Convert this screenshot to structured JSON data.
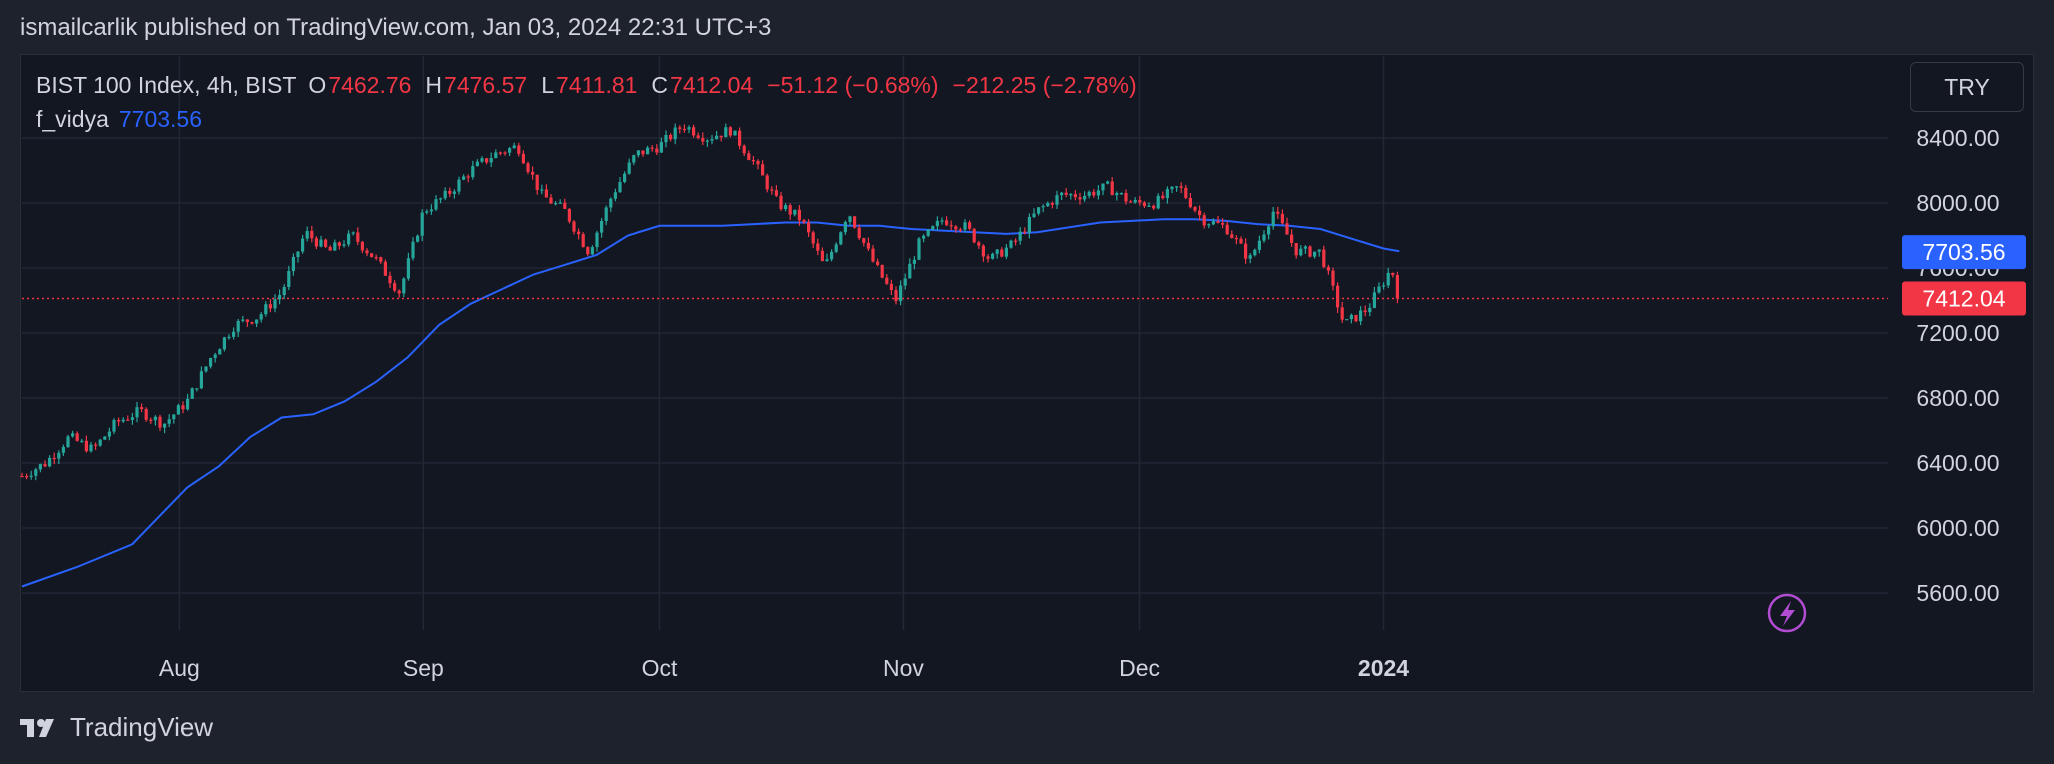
{
  "header": {
    "published_text": "ismailcarlik published on TradingView.com, Jan 03, 2024 22:31 UTC+3"
  },
  "legend": {
    "symbol": "BIST 100 Index, 4h, BIST",
    "open_label": "O",
    "open": "7462.76",
    "high_label": "H",
    "high": "7476.57",
    "low_label": "L",
    "low": "7411.81",
    "close_label": "C",
    "close": "7412.04",
    "change": "−51.12 (−0.68%)",
    "change2": "−212.25 (−2.78%)",
    "indicator_name": "f_vidya",
    "indicator_value": "7703.56"
  },
  "currency_button": "TRY",
  "footer": {
    "brand": "TradingView"
  },
  "colors": {
    "up": "#26a69a",
    "down": "#f23645",
    "indicator": "#2962ff",
    "background": "#131722"
  },
  "chart_data": {
    "type": "line",
    "title": "",
    "xlabel": "",
    "ylabel": "",
    "x_ticks": [
      "Aug",
      "Sep",
      "Oct",
      "Nov",
      "Dec",
      "2024"
    ],
    "y_ticks": [
      5600,
      6000,
      6400,
      6800,
      7200,
      7600,
      8000,
      8400
    ],
    "y_tick_labels": [
      "5600.00",
      "6000.00",
      "6400.00",
      "6800.00",
      "7200.00",
      "7600.00",
      "8000.00",
      "8400.00"
    ],
    "ylim": [
      5500,
      8550
    ],
    "grid": true,
    "last_price": 7412.04,
    "last_price_label": "7412.04",
    "series": [
      {
        "name": "BIST 100 Index",
        "kind": "price",
        "x": [
          "Jul 12",
          "Jul 15",
          "Jul 18",
          "Jul 21",
          "Jul 24",
          "Jul 27",
          "Jul 30",
          "Aug 02",
          "Aug 05",
          "Aug 08",
          "Aug 11",
          "Aug 14",
          "Aug 17",
          "Aug 20",
          "Aug 23",
          "Aug 26",
          "Aug 29",
          "Sep 01",
          "Sep 04",
          "Sep 07",
          "Sep 10",
          "Sep 13",
          "Sep 16",
          "Sep 19",
          "Sep 22",
          "Sep 25",
          "Sep 28",
          "Oct 01",
          "Oct 04",
          "Oct 07",
          "Oct 10",
          "Oct 13",
          "Oct 16",
          "Oct 19",
          "Oct 22",
          "Oct 25",
          "Oct 28",
          "Oct 31",
          "Nov 03",
          "Nov 06",
          "Nov 09",
          "Nov 12",
          "Nov 15",
          "Nov 18",
          "Nov 21",
          "Nov 24",
          "Nov 27",
          "Nov 30",
          "Dec 03",
          "Dec 06",
          "Dec 09",
          "Dec 12",
          "Dec 15",
          "Dec 18",
          "Dec 21",
          "Dec 24",
          "Dec 27",
          "Dec 30",
          "Jan 02",
          "Jan 03"
        ],
        "values": [
          6320,
          6400,
          6560,
          6480,
          6650,
          6720,
          6640,
          6780,
          7050,
          7250,
          7300,
          7450,
          7820,
          7700,
          7800,
          7650,
          7450,
          7950,
          8050,
          8200,
          8300,
          8350,
          8050,
          7950,
          7700,
          8050,
          8300,
          8350,
          8480,
          8400,
          8450,
          8250,
          8000,
          7900,
          7600,
          7950,
          7650,
          7400,
          7750,
          7900,
          7850,
          7650,
          7750,
          7950,
          8050,
          8050,
          8100,
          8000,
          8000,
          8100,
          7900,
          7850,
          7650,
          7950,
          7700,
          7700,
          7250,
          7350,
          7600,
          7412
        ]
      },
      {
        "name": "f_vidya",
        "kind": "indicator",
        "x": [
          "Jul 12",
          "Jul 19",
          "Jul 26",
          "Aug 02",
          "Aug 06",
          "Aug 10",
          "Aug 14",
          "Aug 18",
          "Aug 22",
          "Aug 26",
          "Aug 30",
          "Sep 03",
          "Sep 07",
          "Sep 11",
          "Sep 15",
          "Sep 19",
          "Sep 23",
          "Sep 27",
          "Oct 01",
          "Oct 05",
          "Oct 09",
          "Oct 13",
          "Oct 17",
          "Oct 21",
          "Oct 25",
          "Oct 29",
          "Nov 02",
          "Nov 06",
          "Nov 10",
          "Nov 14",
          "Nov 18",
          "Nov 22",
          "Nov 26",
          "Nov 30",
          "Dec 04",
          "Dec 08",
          "Dec 12",
          "Dec 16",
          "Dec 20",
          "Dec 24",
          "Dec 28",
          "Jan 01",
          "Jan 03"
        ],
        "values": [
          5640,
          5760,
          5900,
          6250,
          6380,
          6560,
          6680,
          6700,
          6780,
          6900,
          7050,
          7250,
          7380,
          7470,
          7560,
          7620,
          7680,
          7800,
          7860,
          7860,
          7860,
          7870,
          7880,
          7880,
          7860,
          7860,
          7840,
          7830,
          7820,
          7810,
          7820,
          7850,
          7880,
          7890,
          7900,
          7900,
          7890,
          7870,
          7860,
          7840,
          7780,
          7720,
          7703.56
        ]
      }
    ]
  }
}
